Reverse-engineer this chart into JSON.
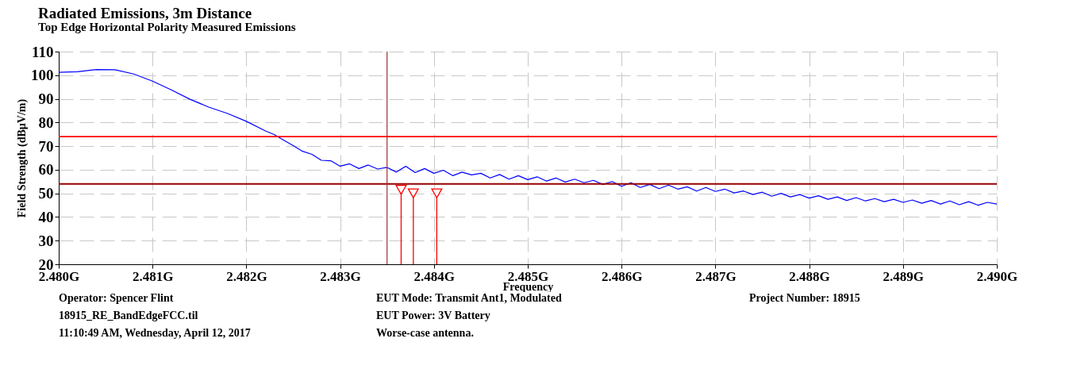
{
  "chart_data": {
    "type": "line",
    "title": "Radiated Emissions, 3m Distance",
    "subtitle": "Top Edge Horizontal Polarity Measured Emissions",
    "xlabel": "Frequency",
    "ylabel": "Field Strength (dBµV/m)",
    "xlim": [
      2.48,
      2.49
    ],
    "xticks": [
      {
        "value": 2.48,
        "label": "2.480G"
      },
      {
        "value": 2.481,
        "label": "2.481G"
      },
      {
        "value": 2.482,
        "label": "2.482G"
      },
      {
        "value": 2.483,
        "label": "2.483G"
      },
      {
        "value": 2.484,
        "label": "2.484G"
      },
      {
        "value": 2.485,
        "label": "2.485G"
      },
      {
        "value": 2.486,
        "label": "2.486G"
      },
      {
        "value": 2.487,
        "label": "2.487G"
      },
      {
        "value": 2.488,
        "label": "2.488G"
      },
      {
        "value": 2.489,
        "label": "2.489G"
      },
      {
        "value": 2.49,
        "label": "2.490G"
      }
    ],
    "ylim": [
      20,
      110
    ],
    "yticks": [
      20,
      30,
      40,
      50,
      60,
      70,
      80,
      90,
      100,
      110
    ],
    "grid": true,
    "series": [
      {
        "color": "#0000ff",
        "x": [
          2.48,
          2.4802,
          2.4804,
          2.4806,
          2.4808,
          2.481,
          2.4812,
          2.4814,
          2.4816,
          2.4818,
          2.482,
          2.4822,
          2.4823,
          2.4824,
          2.4825,
          2.4826,
          2.4827,
          2.4828,
          2.4829,
          2.483,
          2.4831,
          2.4832,
          2.4833,
          2.4834,
          2.4835,
          2.4836,
          2.4837,
          2.4838,
          2.4839,
          2.484,
          2.4841,
          2.4842,
          2.4843,
          2.4844,
          2.4845,
          2.4846,
          2.4847,
          2.4848,
          2.4849,
          2.485,
          2.4851,
          2.4852,
          2.4853,
          2.4854,
          2.4855,
          2.4856,
          2.4857,
          2.4858,
          2.4859,
          2.486,
          2.4861,
          2.4862,
          2.4863,
          2.4864,
          2.4865,
          2.4866,
          2.4867,
          2.4868,
          2.4869,
          2.487,
          2.4871,
          2.4872,
          2.4873,
          2.4874,
          2.4875,
          2.4876,
          2.4877,
          2.4878,
          2.4879,
          2.488,
          2.4881,
          2.4882,
          2.4883,
          2.4884,
          2.4885,
          2.4886,
          2.4887,
          2.4888,
          2.4889,
          2.489,
          2.4891,
          2.4892,
          2.4893,
          2.4894,
          2.4895,
          2.4896,
          2.4897,
          2.4898,
          2.4899,
          2.49
        ],
        "values": [
          101.2,
          101.5,
          102.4,
          102.3,
          100.5,
          97.5,
          93.8,
          89.8,
          86.5,
          83.8,
          80.5,
          76.5,
          74.8,
          72.5,
          70.2,
          67.8,
          66.5,
          64.0,
          63.8,
          61.5,
          62.5,
          60.5,
          62.0,
          60.3,
          61.0,
          59.0,
          61.5,
          58.8,
          60.5,
          58.5,
          59.8,
          57.5,
          59.0,
          57.8,
          58.5,
          56.5,
          58.0,
          56.0,
          57.5,
          55.8,
          57.0,
          55.2,
          56.5,
          54.8,
          56.0,
          54.5,
          55.5,
          53.8,
          55.0,
          53.0,
          54.5,
          52.5,
          53.8,
          52.0,
          53.5,
          51.8,
          52.8,
          51.0,
          52.5,
          50.8,
          51.8,
          50.2,
          51.0,
          49.5,
          50.5,
          48.8,
          50.0,
          48.5,
          49.5,
          48.0,
          49.0,
          47.5,
          48.5,
          47.0,
          48.2,
          46.8,
          47.8,
          46.5,
          47.5,
          46.2,
          47.2,
          45.8,
          47.0,
          45.5,
          46.8,
          45.2,
          46.5,
          45.0,
          46.2,
          45.5
        ]
      },
      {
        "type": "lollipop",
        "color": "#ff0000",
        "marker": "triangle",
        "x": [
          2.48365,
          2.48378,
          2.48403
        ],
        "values": [
          51.5,
          50,
          50
        ]
      }
    ],
    "ref_lines": [
      {
        "axis": "y",
        "value": 74,
        "color": "#ff0000"
      },
      {
        "axis": "y",
        "value": 54,
        "color": "#990000"
      },
      {
        "axis": "x",
        "value": 2.4835,
        "color": "#a03030"
      }
    ],
    "annotations": [
      "Operator: Spencer Flint",
      "18915_RE_BandEdgeFCC.til",
      "11:10:49 AM, Wednesday, April 12, 2017",
      "EUT Mode: Transmit Ant1, Modulated",
      "EUT Power: 3V Battery",
      "Worse-case antenna.",
      "Project Number: 18915"
    ]
  }
}
